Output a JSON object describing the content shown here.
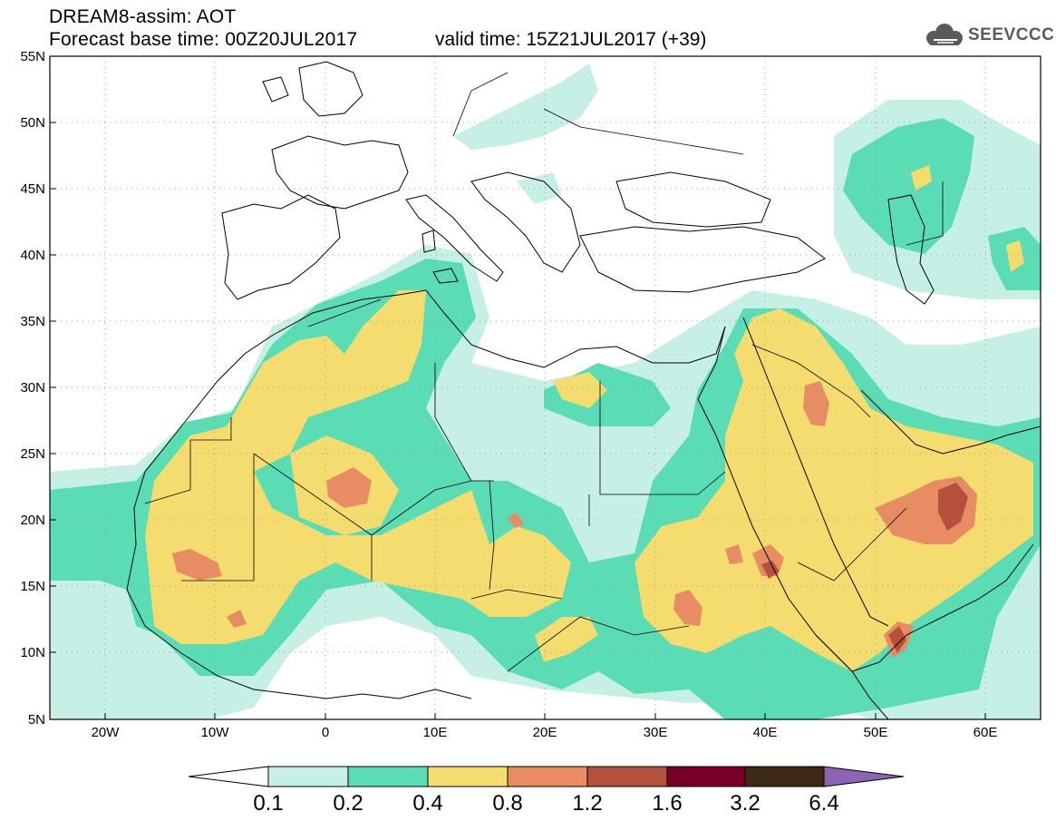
{
  "header": {
    "title": "DREAM8-assim: AOT",
    "base_time": "Forecast base time: 00Z20JUL2017",
    "valid_time": "valid time: 15Z21JUL2017 (+39)",
    "logo_text": "SEEVCCC"
  },
  "map": {
    "lon_range": [
      -25,
      65
    ],
    "lat_range": [
      5,
      55
    ],
    "lat_ticks": [
      "55N",
      "50N",
      "45N",
      "40N",
      "35N",
      "30N",
      "25N",
      "20N",
      "15N",
      "10N",
      "5N"
    ],
    "lon_ticks": [
      "20W",
      "10W",
      "0",
      "10E",
      "20E",
      "30E",
      "40E",
      "50E",
      "60E"
    ],
    "grid": "dotted"
  },
  "colorbar": {
    "labels": [
      "0.1",
      "0.2",
      "0.4",
      "0.8",
      "1.2",
      "1.6",
      "3.2",
      "6.4"
    ],
    "colors": [
      "#ffffff",
      "#c6efe6",
      "#5adcb4",
      "#f5dc6e",
      "#e88c64",
      "#b4503c",
      "#780028",
      "#3c2814",
      "#8c64b4"
    ]
  },
  "colors": {
    "c1": "#c6efe6",
    "c2": "#5adcb4",
    "c3": "#f5dc6e",
    "c4": "#e88c64",
    "c5": "#b4503c"
  }
}
